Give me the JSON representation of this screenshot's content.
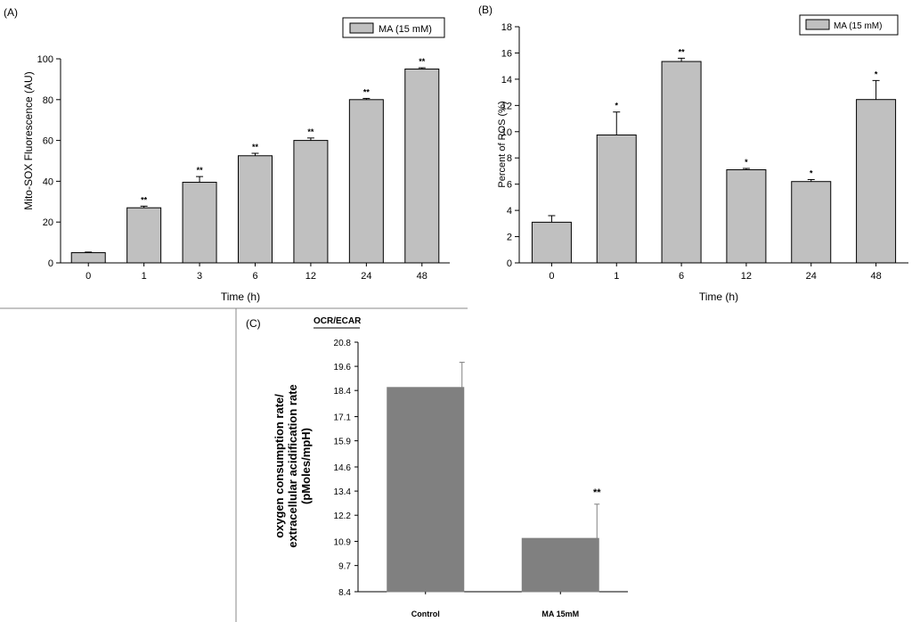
{
  "chart_data": [
    {
      "id": "A",
      "panel_label": "(A)",
      "type": "bar",
      "categories": [
        "0",
        "1",
        "3",
        "6",
        "12",
        "24",
        "48"
      ],
      "values": [
        5,
        27,
        39.5,
        52.5,
        60,
        80,
        95
      ],
      "errors": [
        0.3,
        0.8,
        2.8,
        1.2,
        1.2,
        0.6,
        0.6
      ],
      "significance": [
        "",
        "**",
        "**",
        "**",
        "**",
        "**",
        "**"
      ],
      "xlabel": "Time (h)",
      "ylabel": "Mito-SOX Fluorescence (AU)",
      "ylim": [
        0,
        100
      ],
      "yticks": [
        "0",
        "20",
        "40",
        "60",
        "80",
        "100"
      ],
      "legend": "MA (15 mM)",
      "legend_position": "top-right",
      "bar_color": "#c0c0c0"
    },
    {
      "id": "B",
      "panel_label": "(B)",
      "type": "bar",
      "categories": [
        "0",
        "1",
        "6",
        "12",
        "24",
        "48"
      ],
      "values": [
        3.1,
        9.75,
        15.35,
        7.1,
        6.2,
        12.45
      ],
      "errors": [
        0.5,
        1.75,
        0.25,
        0.1,
        0.15,
        1.45
      ],
      "significance": [
        "",
        "*",
        "**",
        "*",
        "*",
        "*"
      ],
      "xlabel": "Time (h)",
      "ylabel": "Percent of ROS (%)",
      "ylim": [
        0,
        18
      ],
      "yticks": [
        "0",
        "2",
        "4",
        "6",
        "8",
        "10",
        "12",
        "14",
        "16",
        "18"
      ],
      "legend": "MA (15 mM)",
      "legend_position": "top-right",
      "bar_color": "#c0c0c0"
    },
    {
      "id": "C",
      "panel_label": "(C)",
      "type": "bar",
      "title": "OCR/ECAR",
      "categories": [
        "Control",
        "MA 15mM"
      ],
      "values": [
        18.55,
        11.05
      ],
      "errors": [
        1.25,
        1.7
      ],
      "significance": [
        "",
        "**"
      ],
      "ylabel_lines": [
        "oxygen consumption rate/",
        "extracellular acidification rate",
        "(pMoles/mpH)"
      ],
      "ylim": [
        8.4,
        20.8
      ],
      "yticks": [
        "8.4",
        "9.7",
        "10.9",
        "12.2",
        "13.4",
        "14.6",
        "15.9",
        "17.1",
        "18.4",
        "19.6",
        "20.8"
      ],
      "bar_color": "#808080"
    }
  ]
}
